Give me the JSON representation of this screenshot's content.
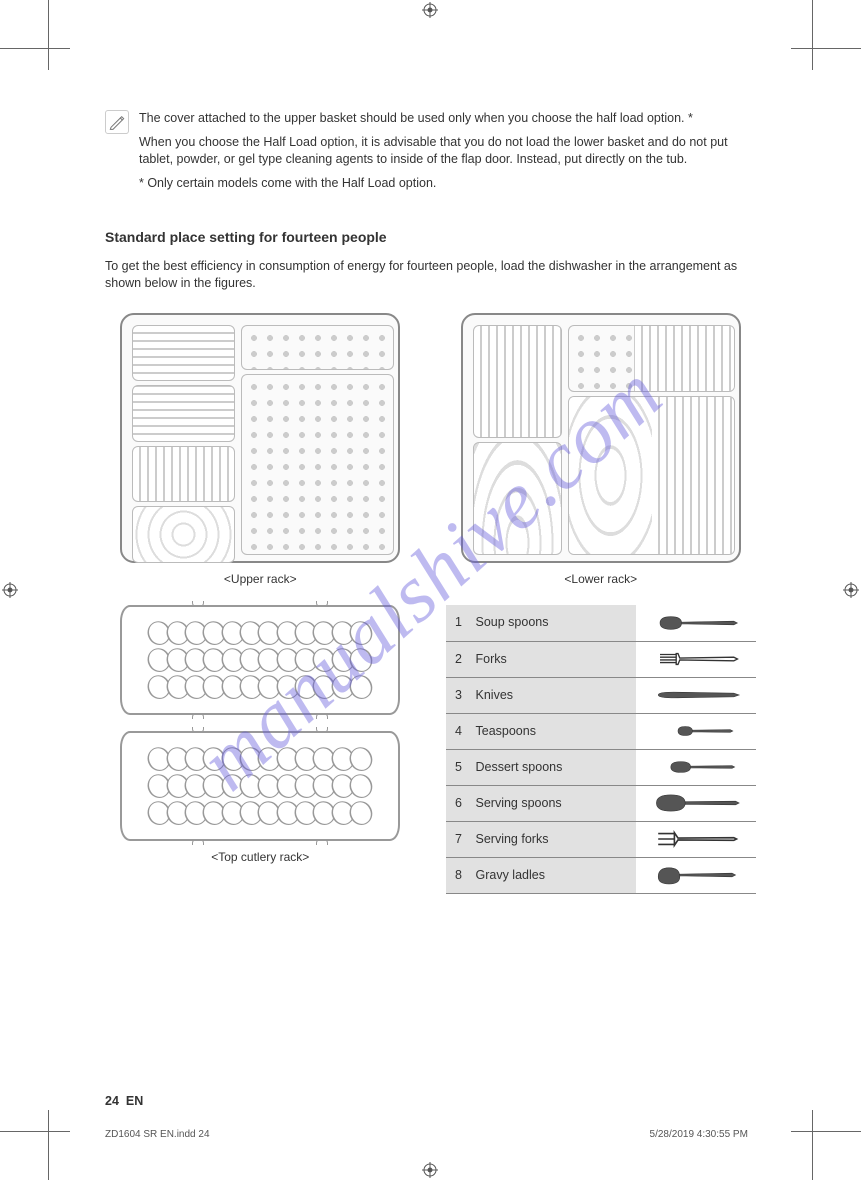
{
  "page": {
    "number": "24",
    "section_prefix": "EN",
    "watermark": "manualshive.com",
    "footer_left": "ZD1604 SR EN.indd   24",
    "footer_right": "5/28/2019   4:30:55 PM"
  },
  "note": {
    "paragraphs": [
      "The cover attached to the upper basket should be used only when you choose the half load option. *",
      "When you choose the Half Load option, it is advisable that you do not load the lower basket and do not put tablet, powder, or gel type cleaning agents to inside of the flap door. Instead, put directly on the tub.",
      "* Only certain models come with the Half Load option."
    ]
  },
  "standard": {
    "title": "Standard place setting for fourteen people",
    "desc": "To get the best efficiency in consumption of energy for fourteen people, load the dishwasher in the arrangement as shown below in the figures.",
    "labels": {
      "upper": "<Upper rack>",
      "lower": "<Lower rack>",
      "cutlery": "<Top cutlery rack>"
    }
  },
  "utensils": [
    {
      "num": "1",
      "name": "Soup spoons",
      "shape": "spoon"
    },
    {
      "num": "2",
      "name": "Forks",
      "shape": "fork"
    },
    {
      "num": "3",
      "name": "Knives",
      "shape": "knife"
    },
    {
      "num": "4",
      "name": "Teaspoons",
      "shape": "teaspoon"
    },
    {
      "num": "5",
      "name": "Dessert spoons",
      "shape": "dessertspoon"
    },
    {
      "num": "6",
      "name": "Serving spoons",
      "shape": "servspoon"
    },
    {
      "num": "7",
      "name": "Serving forks",
      "shape": "servfork"
    },
    {
      "num": "8",
      "name": "Gravy ladles",
      "shape": "ladle"
    }
  ],
  "colors": {
    "text": "#333333",
    "border": "#888888",
    "cell_bg": "#e1e1e1",
    "watermark": "rgba(100,90,220,0.42)"
  }
}
